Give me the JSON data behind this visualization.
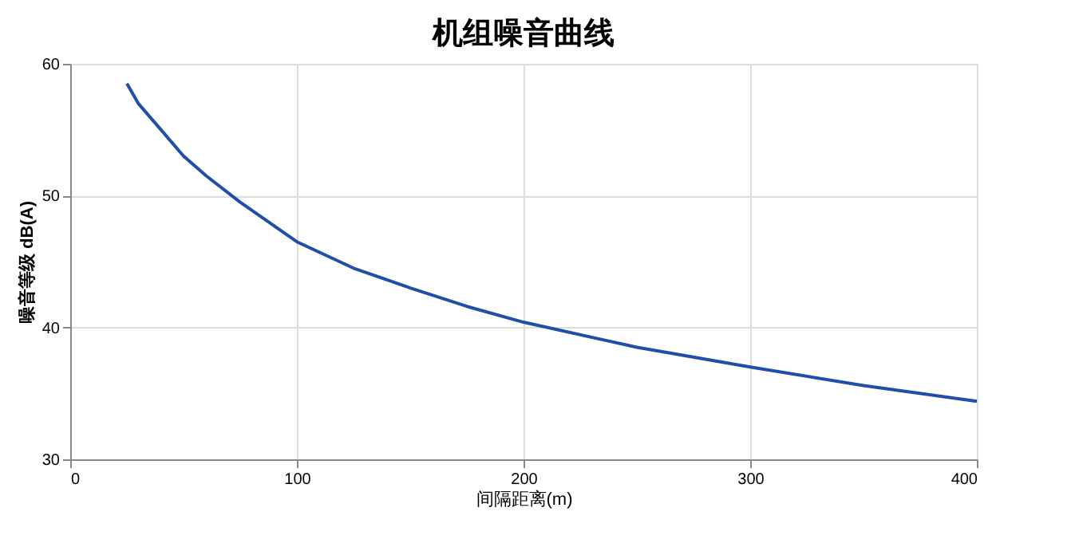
{
  "chart_data": {
    "type": "line",
    "title": "机组噪音曲线",
    "xlabel": "间隔距离(m)",
    "ylabel": "噪音等级 dB(A)",
    "x": [
      25,
      30,
      40,
      50,
      60,
      75,
      100,
      125,
      150,
      175,
      200,
      250,
      300,
      350,
      400
    ],
    "series": [
      {
        "color": "#1f4fa8",
        "values": [
          58.5,
          57,
          55,
          53,
          51.5,
          49.5,
          46.5,
          44.5,
          43,
          41.6,
          40.4,
          38.5,
          37,
          35.6,
          34.4
        ]
      }
    ],
    "xlim": [
      0,
      400
    ],
    "xticks": [
      0,
      100,
      200,
      300,
      400
    ],
    "ylim": [
      30,
      60
    ],
    "yticks": [
      30,
      40,
      50,
      60
    ],
    "grid": true,
    "marker": "none",
    "line_style": "solid"
  }
}
